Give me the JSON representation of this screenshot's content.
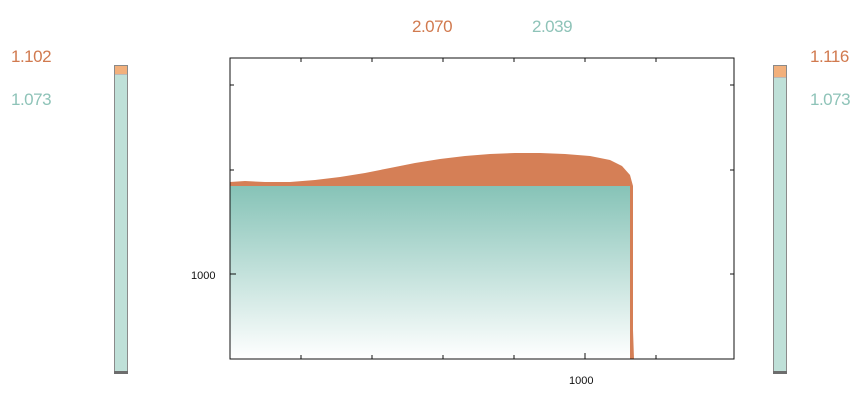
{
  "header": {
    "left_metric": "2.070",
    "right_metric": "2.039"
  },
  "left_gauge": {
    "top_value": "1.102",
    "bottom_value": "1.073"
  },
  "right_gauge": {
    "top_value": "1.116",
    "bottom_value": "1.073"
  },
  "chart_data": {
    "type": "area",
    "x_tick_labels": [
      "1000"
    ],
    "y_tick_labels": [
      "1000"
    ],
    "colors": {
      "upper_fill": "#d57f56",
      "lower_gradient_top": "#86c3b7",
      "lower_gradient_bottom": "#ffffff",
      "frame": "#111111"
    }
  }
}
